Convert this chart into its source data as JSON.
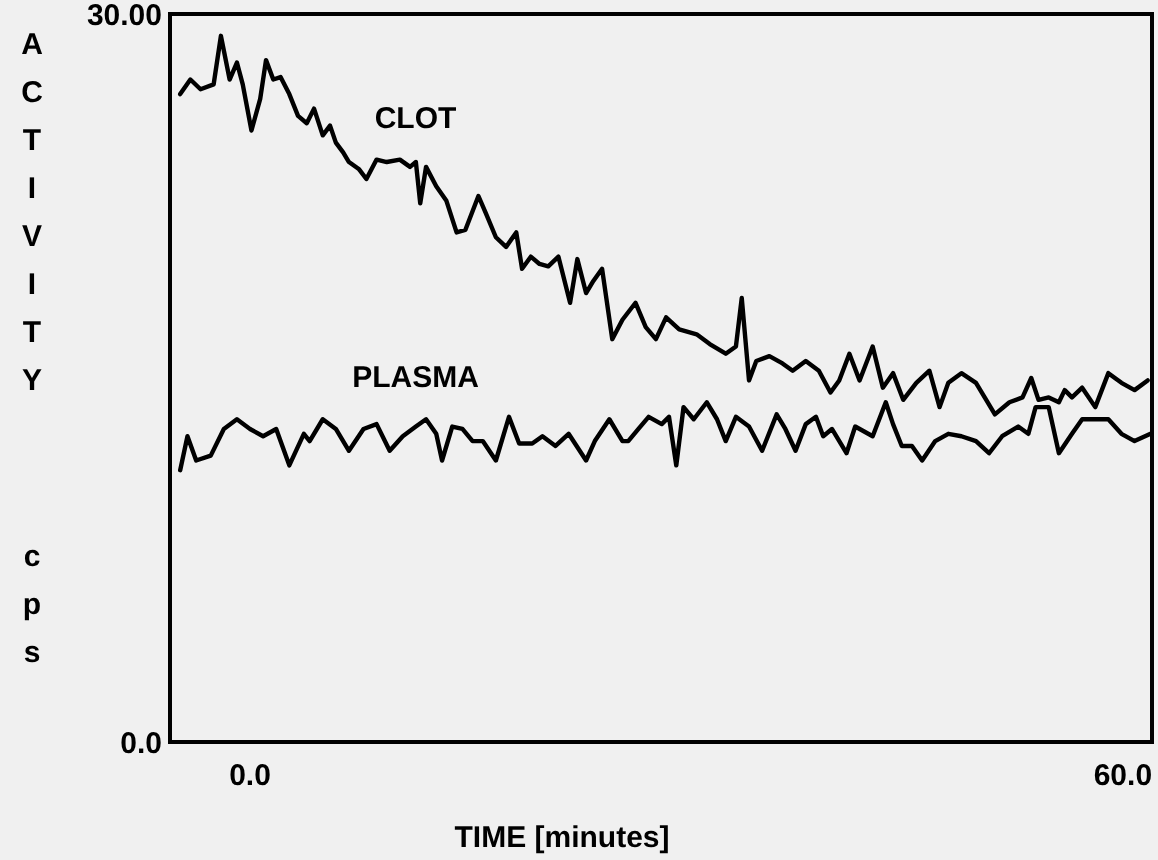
{
  "chart_data": {
    "type": "line",
    "xlabel": "TIME [minutes]",
    "ylabel": "ACTIVITY cps",
    "xlim": [
      -5.5,
      62
    ],
    "ylim": [
      0,
      30
    ],
    "xticks": [
      {
        "value": 0,
        "label": "0.0"
      },
      {
        "value": 60,
        "label": "60.0"
      }
    ],
    "yticks": [
      {
        "value": 0,
        "label": "0.0"
      },
      {
        "value": 30,
        "label": "30.00"
      }
    ],
    "line_style": "solid",
    "series": [
      {
        "name": "CLOT",
        "color": "#000000",
        "x": [
          -4.8,
          -4.1,
          -3.4,
          -2.5,
          -2.0,
          -1.4,
          -0.9,
          -0.5,
          0.1,
          0.7,
          1.1,
          1.6,
          2.1,
          2.7,
          3.3,
          3.9,
          4.4,
          5.0,
          5.5,
          5.9,
          6.4,
          6.8,
          7.5,
          8.0,
          8.7,
          9.4,
          10.3,
          11.0,
          11.4,
          11.7,
          12.1,
          12.8,
          13.5,
          14.2,
          14.8,
          15.7,
          16.2,
          16.9,
          17.6,
          18.3,
          18.7,
          19.3,
          19.9,
          20.5,
          21.2,
          22.0,
          22.5,
          23.1,
          23.6,
          24.2,
          24.9,
          25.6,
          26.5,
          27.2,
          27.9,
          28.6,
          29.5,
          30.7,
          31.6,
          32.7,
          33.4,
          33.8,
          34.3,
          34.8,
          35.7,
          36.6,
          37.3,
          38.2,
          39.1,
          39.9,
          40.5,
          41.2,
          41.9,
          42.8,
          43.5,
          44.2,
          44.9,
          45.8,
          46.7,
          47.4,
          48.0,
          48.9,
          49.9,
          50.5,
          51.2,
          52.2,
          53.1,
          53.7,
          54.2,
          54.9,
          55.6,
          56.0,
          56.5,
          57.2,
          58.1,
          59.0,
          59.9,
          60.8,
          61.7
        ],
        "values": [
          26.7,
          27.3,
          26.9,
          27.1,
          29.1,
          27.3,
          28.0,
          27.1,
          25.2,
          26.5,
          28.1,
          27.3,
          27.4,
          26.7,
          25.8,
          25.5,
          26.1,
          25.0,
          25.4,
          24.7,
          24.3,
          23.9,
          23.6,
          23.2,
          24.0,
          23.9,
          24.0,
          23.7,
          23.9,
          22.2,
          23.7,
          22.9,
          22.3,
          21.0,
          21.1,
          22.5,
          21.8,
          20.8,
          20.4,
          21.0,
          19.5,
          20.0,
          19.7,
          19.6,
          20.0,
          18.1,
          19.9,
          18.5,
          19.0,
          19.5,
          16.6,
          17.4,
          18.1,
          17.1,
          16.6,
          17.5,
          17.0,
          16.8,
          16.4,
          16.0,
          16.3,
          18.3,
          14.9,
          15.7,
          15.9,
          15.6,
          15.3,
          15.7,
          15.3,
          14.4,
          14.9,
          16.0,
          14.9,
          16.3,
          14.6,
          15.2,
          14.1,
          14.8,
          15.3,
          13.8,
          14.8,
          15.2,
          14.8,
          14.2,
          13.5,
          14.0,
          14.2,
          15.0,
          14.1,
          14.2,
          14.0,
          14.5,
          14.2,
          14.6,
          13.8,
          15.2,
          14.8,
          14.5,
          14.9
        ]
      },
      {
        "name": "PLASMA",
        "color": "#000000",
        "x": [
          -4.8,
          -4.3,
          -3.7,
          -2.7,
          -1.8,
          -0.9,
          0.0,
          0.9,
          1.8,
          2.7,
          3.7,
          4.1,
          5.0,
          5.9,
          6.8,
          7.8,
          8.7,
          9.6,
          10.5,
          11.4,
          12.1,
          12.8,
          13.2,
          13.9,
          14.6,
          15.3,
          16.0,
          16.9,
          17.8,
          18.5,
          19.4,
          20.1,
          21.0,
          21.9,
          23.1,
          23.7,
          24.7,
          25.6,
          26.0,
          26.7,
          27.4,
          28.3,
          28.8,
          29.3,
          29.8,
          30.5,
          31.4,
          32.1,
          32.7,
          33.4,
          34.3,
          35.2,
          36.2,
          36.8,
          37.5,
          38.2,
          38.9,
          39.4,
          40.0,
          41.0,
          41.6,
          42.8,
          43.7,
          44.2,
          44.8,
          45.5,
          46.2,
          47.1,
          48.0,
          48.9,
          49.9,
          50.8,
          51.7,
          52.8,
          53.5,
          54.0,
          54.9,
          55.6,
          56.5,
          57.2,
          58.1,
          59.0,
          59.9,
          60.8,
          61.9
        ],
        "values": [
          11.2,
          12.6,
          11.6,
          11.8,
          12.9,
          13.3,
          12.9,
          12.6,
          12.9,
          11.4,
          12.7,
          12.4,
          13.3,
          12.9,
          12.0,
          12.9,
          13.1,
          12.0,
          12.6,
          13.0,
          13.3,
          12.7,
          11.6,
          13.0,
          12.9,
          12.4,
          12.4,
          11.6,
          13.4,
          12.3,
          12.3,
          12.6,
          12.2,
          12.7,
          11.6,
          12.4,
          13.3,
          12.4,
          12.4,
          12.9,
          13.4,
          13.1,
          13.4,
          11.4,
          13.8,
          13.3,
          14.0,
          13.3,
          12.4,
          13.4,
          13.0,
          12.0,
          13.5,
          12.9,
          12.0,
          13.1,
          13.4,
          12.6,
          12.9,
          11.9,
          13.0,
          12.6,
          14.0,
          13.1,
          12.2,
          12.2,
          11.6,
          12.4,
          12.7,
          12.6,
          12.4,
          11.9,
          12.6,
          13.0,
          12.7,
          13.8,
          13.8,
          11.9,
          12.7,
          13.3,
          13.3,
          13.3,
          12.7,
          12.4,
          12.7
        ]
      }
    ]
  }
}
